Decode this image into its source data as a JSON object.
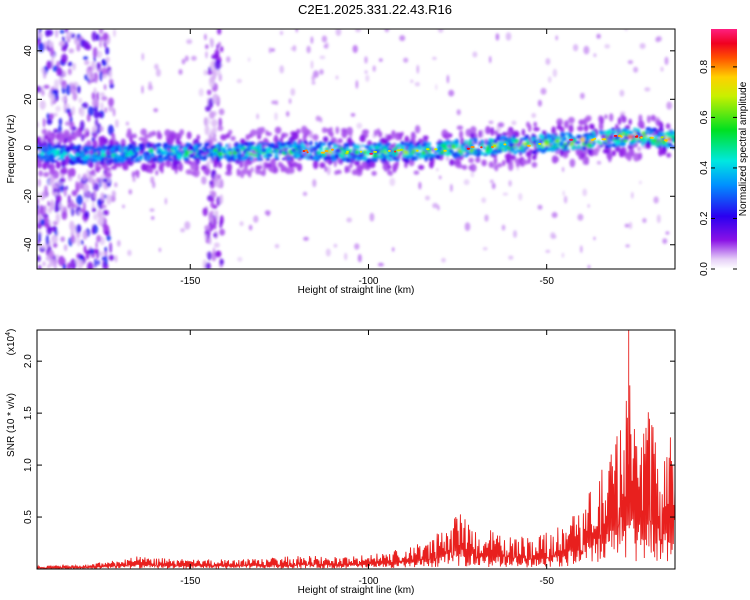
{
  "title": "C2E1.2025.331.22.43.R16",
  "chart_data": [
    {
      "type": "heatmap",
      "title": "C2E1.2025.331.22.43.R16",
      "xlabel": "Height of straight line (km)",
      "ylabel": "Frequency (Hz)",
      "xlim": [
        -193,
        -14
      ],
      "ylim": [
        -50,
        49
      ],
      "x_ticks": [
        -150,
        -100,
        -50
      ],
      "x_tick_labels": [
        "-150",
        "-100",
        "-50"
      ],
      "y_ticks": [
        40,
        20,
        0,
        -20,
        -40
      ],
      "y_tick_labels": [
        "40",
        "20",
        "0",
        "-20",
        "-40"
      ],
      "colorbar": {
        "label": "Normalized spectral amplitude",
        "range": [
          0,
          0.95
        ],
        "ticks": [
          0.0,
          0.2,
          0.4,
          0.6,
          0.8
        ],
        "tick_labels": [
          "0.0",
          "0.2",
          "0.4",
          "0.6",
          "0.8"
        ],
        "colormap": "rainbow (white-violet-blue-cyan-green-yellow-orange-red-magenta)"
      },
      "ridge": {
        "x": [
          -193,
          -180,
          -160,
          -140,
          -120,
          -100,
          -80,
          -60,
          -40,
          -25,
          -14
        ],
        "frequency": [
          -2,
          -3,
          -2,
          -2,
          -1,
          -2,
          -1,
          1,
          3,
          5,
          3
        ]
      },
      "vertical_noise_bands_x": [
        [
          -193,
          -172
        ],
        [
          -146,
          -141
        ]
      ],
      "grid": false
    },
    {
      "type": "line",
      "xlabel": "Height of straight line (km)",
      "ylabel": "SNR (10 * v/v)",
      "y_scale_label": "(x10",
      "y_scale_exponent": "4",
      "xlim": [
        -193,
        -14
      ],
      "ylim": [
        0,
        2.3
      ],
      "x_ticks": [
        -150,
        -100,
        -50
      ],
      "x_tick_labels": [
        "-150",
        "-100",
        "-50"
      ],
      "y_ticks": [
        0.5,
        1.0,
        1.5,
        2.0
      ],
      "y_tick_labels": [
        "0.5",
        "1.0",
        "1.5",
        "2.0"
      ],
      "series": [
        {
          "color": "#e8201e",
          "envelope_x": [
            -193,
            -180,
            -165,
            -150,
            -130,
            -120,
            -105,
            -95,
            -85,
            -78,
            -74,
            -70,
            -62,
            -55,
            -48,
            -42,
            -38,
            -34,
            -31,
            -29,
            -27,
            -25,
            -22,
            -18,
            -14
          ],
          "envelope_y": [
            0.03,
            0.04,
            0.12,
            0.09,
            0.1,
            0.13,
            0.12,
            0.16,
            0.25,
            0.42,
            0.55,
            0.4,
            0.35,
            0.3,
            0.4,
            0.55,
            0.75,
            1.0,
            1.2,
            1.65,
            2.3,
            1.2,
            1.6,
            1.1,
            1.45
          ]
        }
      ],
      "grid": false
    }
  ]
}
